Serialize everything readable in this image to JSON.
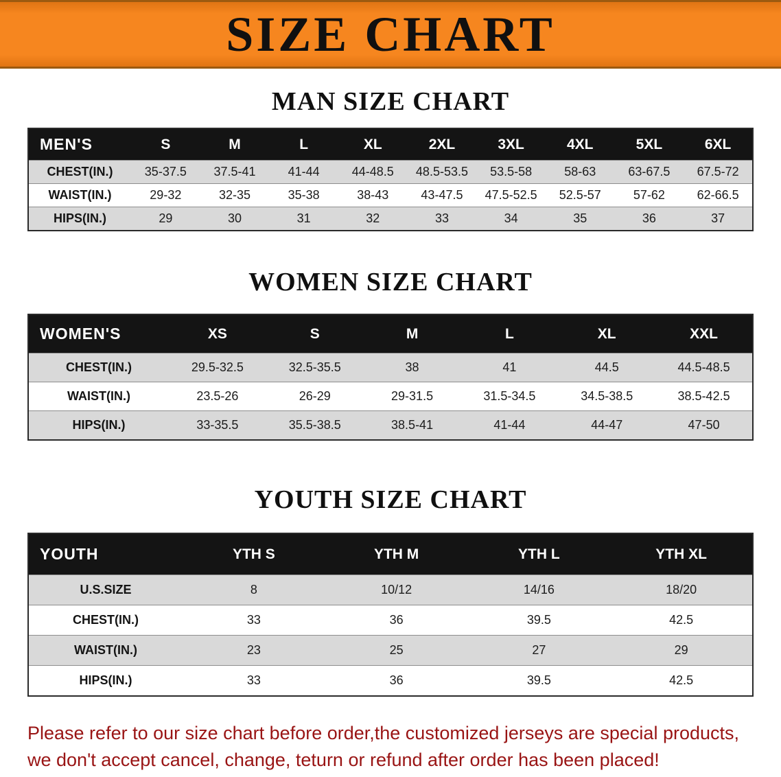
{
  "banner": {
    "title": "SIZE CHART"
  },
  "colors": {
    "banner_bg": "#f6861f",
    "table_header_bg": "#141414",
    "row_stripe": "#d9d9d9",
    "disclaimer_text": "#991414"
  },
  "sections": [
    {
      "id": "men",
      "heading": "MAN SIZE CHART",
      "table": {
        "header": [
          "MEN'S",
          "S",
          "M",
          "L",
          "XL",
          "2XL",
          "3XL",
          "4XL",
          "5XL",
          "6XL"
        ],
        "rows": [
          {
            "label": "CHEST(IN.)",
            "values": [
              "35-37.5",
              "37.5-41",
              "41-44",
              "44-48.5",
              "48.5-53.5",
              "53.5-58",
              "58-63",
              "63-67.5",
              "67.5-72"
            ]
          },
          {
            "label": "WAIST(IN.)",
            "values": [
              "29-32",
              "32-35",
              "35-38",
              "38-43",
              "43-47.5",
              "47.5-52.5",
              "52.5-57",
              "57-62",
              "62-66.5"
            ]
          },
          {
            "label": "HIPS(IN.)",
            "values": [
              "29",
              "30",
              "31",
              "32",
              "33",
              "34",
              "35",
              "36",
              "37"
            ]
          }
        ]
      }
    },
    {
      "id": "women",
      "heading": "WOMEN SIZE CHART",
      "table": {
        "header": [
          "WOMEN'S",
          "XS",
          "S",
          "M",
          "L",
          "XL",
          "XXL"
        ],
        "rows": [
          {
            "label": "CHEST(IN.)",
            "values": [
              "29.5-32.5",
              "32.5-35.5",
              "38",
              "41",
              "44.5",
              "44.5-48.5"
            ]
          },
          {
            "label": "WAIST(IN.)",
            "values": [
              "23.5-26",
              "26-29",
              "29-31.5",
              "31.5-34.5",
              "34.5-38.5",
              "38.5-42.5"
            ]
          },
          {
            "label": "HIPS(IN.)",
            "values": [
              "33-35.5",
              "35.5-38.5",
              "38.5-41",
              "41-44",
              "44-47",
              "47-50"
            ]
          }
        ]
      }
    },
    {
      "id": "youth",
      "heading": "YOUTH SIZE CHART",
      "table": {
        "header": [
          "YOUTH",
          "YTH S",
          "YTH M",
          "YTH L",
          "YTH XL"
        ],
        "rows": [
          {
            "label": "U.S.SIZE",
            "values": [
              "8",
              "10/12",
              "14/16",
              "18/20"
            ]
          },
          {
            "label": "CHEST(IN.)",
            "values": [
              "33",
              "36",
              "39.5",
              "42.5"
            ]
          },
          {
            "label": "WAIST(IN.)",
            "values": [
              "23",
              "25",
              "27",
              "29"
            ]
          },
          {
            "label": "HIPS(IN.)",
            "values": [
              "33",
              "36",
              "39.5",
              "42.5"
            ]
          }
        ]
      }
    }
  ],
  "footer": {
    "lines": [
      "Please refer to our size chart before order,the customized jerseys are special products,",
      "we don't accept cancel, change, teturn or refund after order has been placed!"
    ]
  }
}
